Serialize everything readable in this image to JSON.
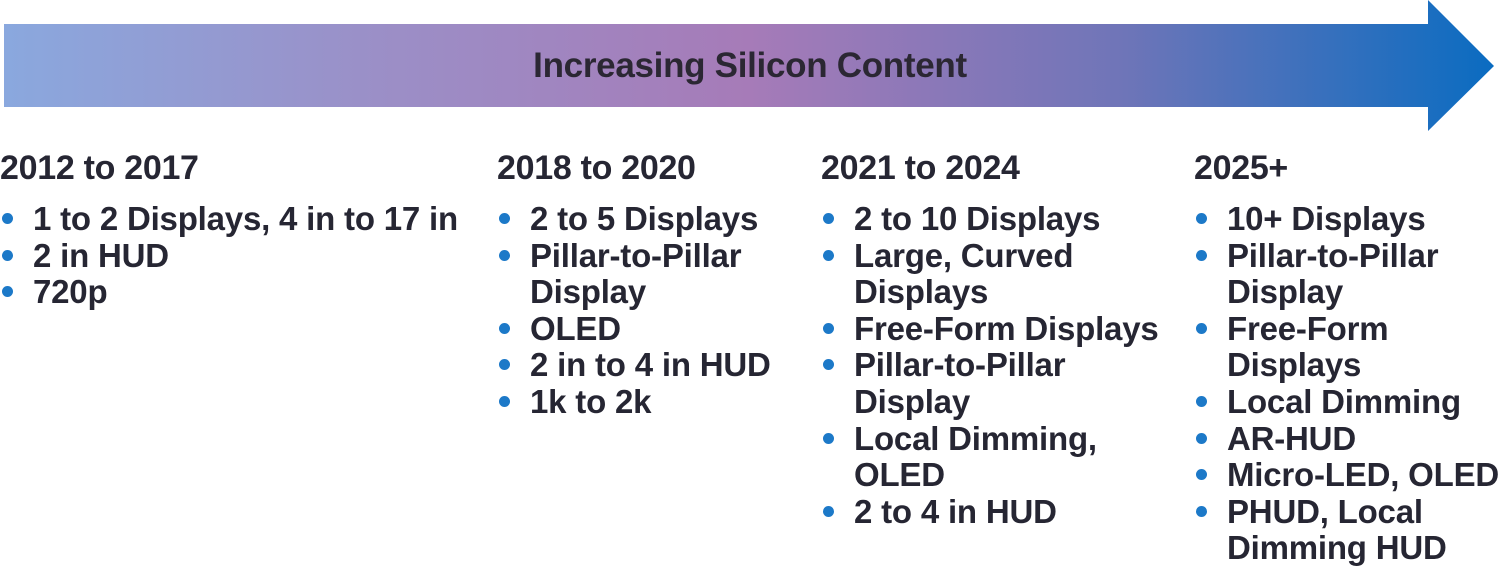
{
  "header": {
    "label": "Increasing Silicon Content"
  },
  "colors": {
    "arrow_start": "#8aa8de",
    "arrow_mid": "#a57cba",
    "arrow_end": "#0a6cc1",
    "bullet": "#1c79c8",
    "text": "#262633"
  },
  "columns": [
    {
      "period": "2012 to 2017",
      "items": [
        "1 to 2 Displays, 4 in to 17 in",
        "2 in HUD",
        "720p"
      ]
    },
    {
      "period": "2018 to 2020",
      "items": [
        "2 to 5 Displays",
        "Pillar-to-Pillar Display",
        "OLED",
        "2 in to 4 in HUD",
        "1k to 2k"
      ]
    },
    {
      "period": "2021 to 2024",
      "items": [
        "2 to 10 Displays",
        "Large, Curved Displays",
        "Free-Form Displays",
        "Pillar-to-Pillar Display",
        "Local Dimming, OLED",
        "2 to 4 in HUD"
      ]
    },
    {
      "period": "2025+",
      "items": [
        "10+ Displays",
        "Pillar-to-Pillar Display",
        "Free-Form Displays",
        "Local Dimming",
        "AR-HUD",
        "Micro-LED, OLED",
        "PHUD, Local Dimming HUD"
      ]
    }
  ]
}
